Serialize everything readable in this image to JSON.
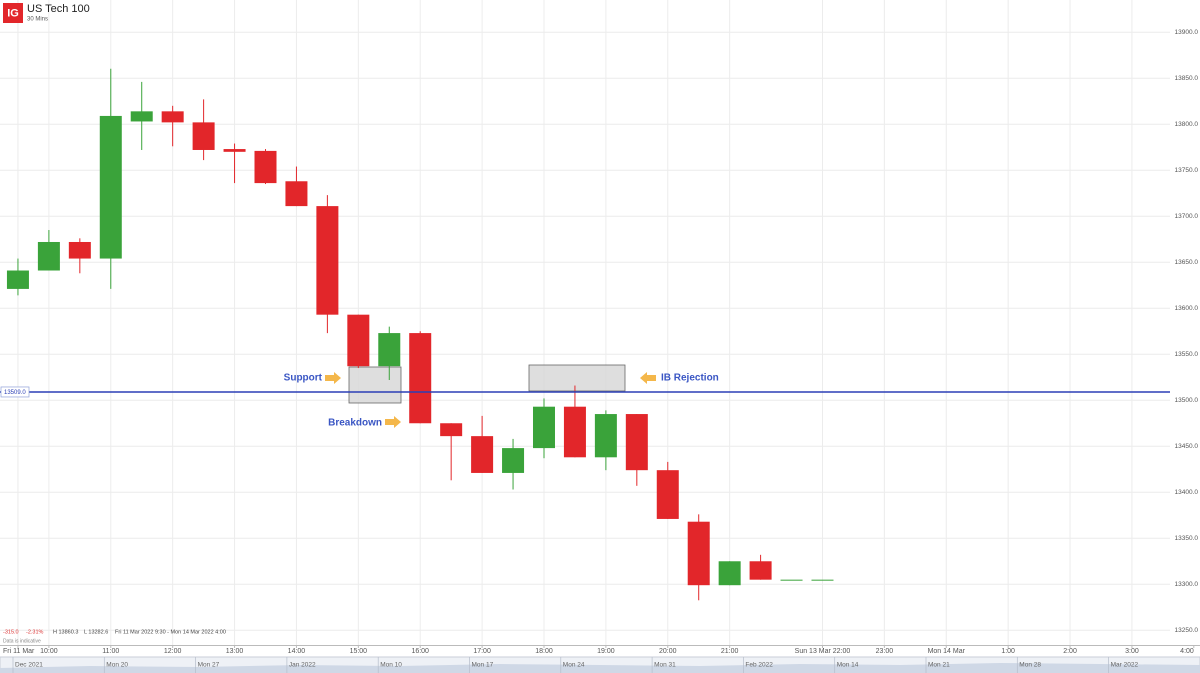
{
  "logo": "IG",
  "chart_data": {
    "type": "candlestick",
    "title": "US Tech 100",
    "subtitle": "30 Mins",
    "x": [
      0,
      1,
      2,
      3,
      4,
      5,
      6,
      7,
      8,
      9,
      10,
      11,
      12,
      13,
      14,
      15,
      16,
      17,
      18,
      19,
      20,
      21,
      22,
      23,
      24,
      25,
      26
    ],
    "open": [
      13621,
      13641,
      13672,
      13654,
      13803,
      13814,
      13802,
      13773,
      13771,
      13738,
      13711,
      13593,
      13537,
      13573,
      13475,
      13461,
      13421,
      13448,
      13493,
      13438,
      13485,
      13424,
      13368,
      13299,
      13325,
      13305,
      13305
    ],
    "high": [
      13654,
      13685,
      13676,
      13860.3,
      13846,
      13820,
      13827,
      13779,
      13773,
      13754,
      13723,
      13593,
      13580,
      13575,
      13475,
      13483,
      13458,
      13502,
      13516,
      13489,
      13485,
      13433,
      13376,
      13325,
      13332,
      13305,
      13305
    ],
    "low": [
      13614,
      13641,
      13638,
      13621,
      13772,
      13776,
      13761,
      13736,
      13735,
      13711,
      13573,
      13535,
      13522,
      13475,
      13413,
      13421,
      13403,
      13437,
      13438,
      13424,
      13407,
      13371,
      13282.6,
      13299,
      13305,
      13305,
      13305
    ],
    "close": [
      13641,
      13672,
      13654,
      13809,
      13814,
      13802,
      13772,
      13770,
      13736,
      13711,
      13593,
      13537,
      13573,
      13475,
      13461,
      13421,
      13448,
      13493,
      13438,
      13485,
      13424,
      13371,
      13299,
      13325,
      13305,
      13305,
      13305
    ],
    "up_color": "#3aa33a",
    "down_color": "#e2262a",
    "xlim": [
      -0.58,
      38.2
    ],
    "xticks": [
      {
        "value": 0,
        "label": "Fri 11 Mar"
      },
      {
        "value": 1,
        "label": "10:00"
      },
      {
        "value": 3,
        "label": "11:00"
      },
      {
        "value": 5,
        "label": "12:00"
      },
      {
        "value": 7,
        "label": "13:00"
      },
      {
        "value": 9,
        "label": "14:00"
      },
      {
        "value": 11,
        "label": "15:00"
      },
      {
        "value": 13,
        "label": "16:00"
      },
      {
        "value": 15,
        "label": "17:00"
      },
      {
        "value": 17,
        "label": "18:00"
      },
      {
        "value": 19,
        "label": "19:00"
      },
      {
        "value": 21,
        "label": "20:00"
      },
      {
        "value": 23,
        "label": "21:00"
      },
      {
        "value": 26,
        "label": "Sun 13 Mar 22:00"
      },
      {
        "value": 28,
        "label": "23:00"
      },
      {
        "value": 30,
        "label": "Mon 14 Mar"
      },
      {
        "value": 32,
        "label": "1:00"
      },
      {
        "value": 34,
        "label": "2:00"
      },
      {
        "value": 36,
        "label": "3:00"
      },
      {
        "value": 38,
        "label": "4:00"
      }
    ],
    "ylim": [
      13234,
      13935
    ],
    "yticks": [
      {
        "value": 13250,
        "label": "13250.0"
      },
      {
        "value": 13300,
        "label": "13300.0"
      },
      {
        "value": 13350,
        "label": "13350.0"
      },
      {
        "value": 13400,
        "label": "13400.0"
      },
      {
        "value": 13450,
        "label": "13450.0"
      },
      {
        "value": 13500,
        "label": "13500.0"
      },
      {
        "value": 13550,
        "label": "13550.0"
      },
      {
        "value": 13600,
        "label": "13600.0"
      },
      {
        "value": 13650,
        "label": "13650.0"
      },
      {
        "value": 13700,
        "label": "13700.0"
      },
      {
        "value": 13750,
        "label": "13750.0"
      },
      {
        "value": 13800,
        "label": "13800.0"
      },
      {
        "value": 13850,
        "label": "13850.0"
      },
      {
        "value": 13900,
        "label": "13900.0"
      }
    ],
    "grid": true,
    "price_line": {
      "value": 13509,
      "label": "13509.0",
      "color": "#2b3fb5"
    },
    "annotations": [
      "Support",
      "Breakdown",
      "IB Rejection"
    ],
    "stats": [
      "-315.0",
      "-2.31%",
      "H 13860.3",
      "L 13282.6",
      "Fri 11 Mar 2022 9:30 - Mon 14 Mar 2022 4:00"
    ],
    "note": "Data is indicative",
    "navigator": [
      "Dec 2021",
      "Mon 20",
      "Mon 27",
      "Jan 2022",
      "Mon 10",
      "Mon 17",
      "Mon 24",
      "Mon 31",
      "Feb 2022",
      "Mon 14",
      "Mon 21",
      "Mon 28",
      "Mar 2022"
    ]
  }
}
